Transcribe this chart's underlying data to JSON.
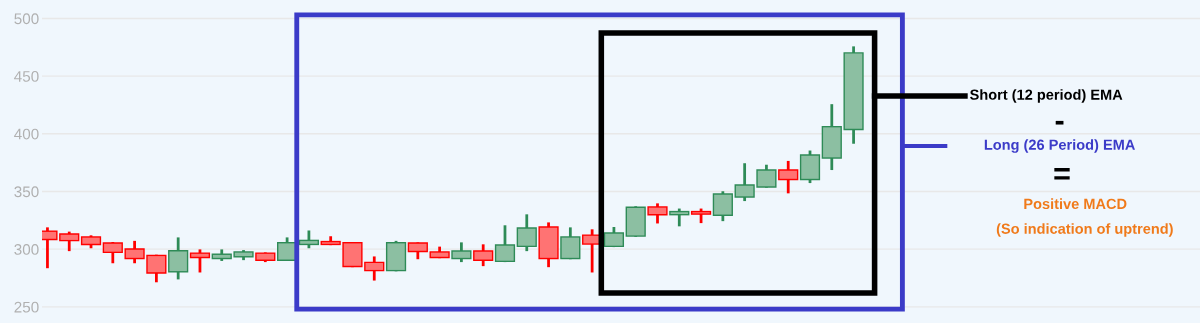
{
  "chart_data": {
    "type": "candlestick",
    "categories": [
      null,
      null,
      null,
      null,
      null,
      null,
      null,
      null,
      null,
      null,
      null,
      null,
      null,
      null,
      null,
      null,
      null,
      null,
      null,
      null,
      null,
      null,
      null,
      null,
      null,
      null,
      null,
      null,
      null,
      null,
      null,
      null,
      null,
      null,
      null,
      null,
      null,
      null
    ],
    "ohlc": [
      [
        315,
        317.7,
        284.7,
        309
      ],
      [
        312.5,
        314,
        299.5,
        308
      ],
      [
        310,
        310.8,
        302,
        304.7
      ],
      [
        304.7,
        305,
        289,
        297.8
      ],
      [
        299.5,
        306,
        289,
        292.5
      ],
      [
        294,
        294,
        272.5,
        280
      ],
      [
        281,
        309,
        275,
        298
      ],
      [
        296,
        298.6,
        281,
        293.4
      ],
      [
        292.5,
        298.6,
        291,
        295
      ],
      [
        294,
        298,
        291.7,
        297
      ],
      [
        296,
        296,
        290,
        291
      ],
      [
        291,
        309,
        291,
        305
      ],
      [
        304.7,
        315,
        302,
        307
      ],
      [
        306,
        310,
        304.7,
        304.7
      ],
      [
        305,
        305,
        285.6,
        285.6
      ],
      [
        288,
        292.5,
        274,
        282
      ],
      [
        282,
        306,
        282,
        305
      ],
      [
        304.7,
        304.7,
        292.5,
        298.6
      ],
      [
        297,
        301,
        293.4,
        293.4
      ],
      [
        292.5,
        304.7,
        290,
        297.8
      ],
      [
        297.8,
        303,
        286.5,
        291
      ],
      [
        290,
        319.5,
        290,
        303
      ],
      [
        303,
        329,
        299.5,
        317.7
      ],
      [
        318.6,
        322,
        285.6,
        292.5
      ],
      [
        292.5,
        317.7,
        292.5,
        310
      ],
      [
        311.6,
        316,
        281,
        305
      ],
      [
        303,
        318,
        303,
        313.4
      ],
      [
        311.9,
        336,
        311.9,
        335.7
      ],
      [
        336,
        338.5,
        323.5,
        330.5
      ],
      [
        330.5,
        334,
        321,
        332
      ],
      [
        332,
        334,
        323.8,
        331
      ],
      [
        330,
        349,
        325.5,
        347.2
      ],
      [
        345.8,
        373.3,
        342.9,
        355
      ],
      [
        354.5,
        372,
        354.5,
        368
      ],
      [
        368,
        375.3,
        349.6,
        361
      ],
      [
        361,
        384.3,
        358.5,
        381
      ],
      [
        379.6,
        424.5,
        369.8,
        405.6
      ],
      [
        404.3,
        474.6,
        392.6,
        469.6
      ]
    ],
    "colors": [
      "#ff0000",
      "#ff0000",
      "#ff0000",
      "#ff0000",
      "#ff0000",
      "#ff0000",
      "#2e8b57",
      "#ff0000",
      "#2e8b57",
      "#2e8b57",
      "#ff0000",
      "#2e8b57",
      "#2e8b57",
      "#ff0000",
      "#ff0000",
      "#ff0000",
      "#2e8b57",
      "#ff0000",
      "#ff0000",
      "#2e8b57",
      "#ff0000",
      "#2e8b57",
      "#2e8b57",
      "#ff0000",
      "#2e8b57",
      "#ff0000",
      "#2e8b57",
      "#2e8b57",
      "#ff0000",
      "#2e8b57",
      "#ff0000",
      "#2e8b57",
      "#2e8b57",
      "#2e8b57",
      "#ff0000",
      "#2e8b57",
      "#2e8b57",
      "#2e8b57"
    ],
    "ylim": [
      236,
      516
    ],
    "yticks": [
      250,
      300,
      350,
      400,
      450,
      500
    ],
    "grid": "y",
    "tick_labels": "y",
    "annotations": [
      "Short (12 period) EMA",
      "-",
      "Long (26 Period) EMA",
      "=",
      "Positive MACD",
      "(So indication of uptrend)"
    ]
  }
}
